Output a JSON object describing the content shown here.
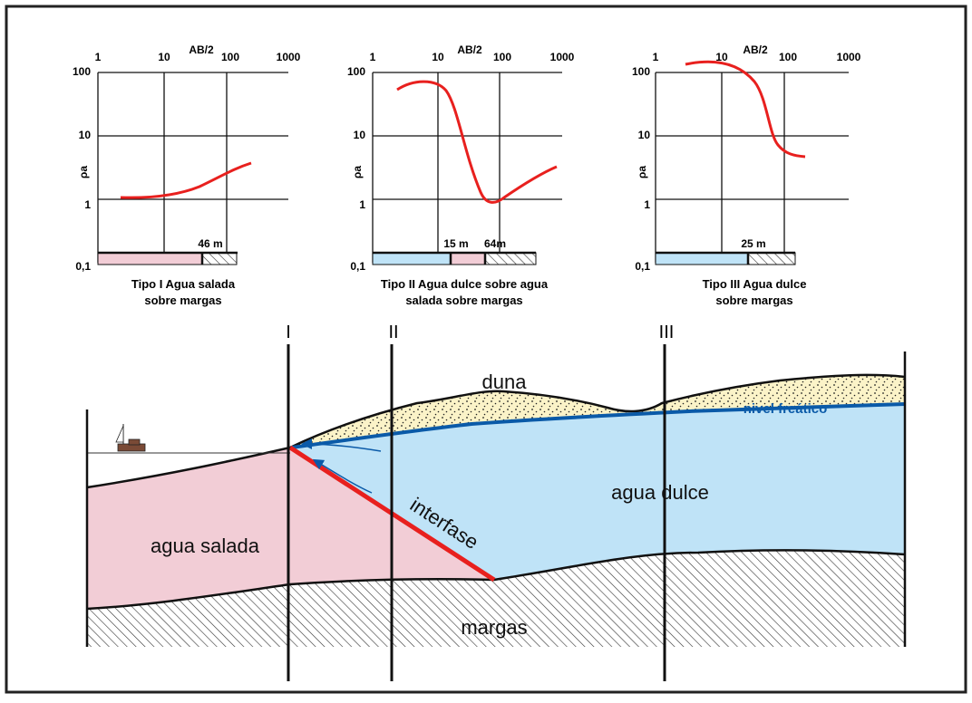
{
  "charts": [
    {
      "id": "tipo1",
      "x_ticks": [
        "1",
        "10",
        "100",
        "1000"
      ],
      "x_label": "AB/2",
      "y_ticks": [
        "100",
        "10",
        "1",
        "0,1"
      ],
      "y_label": "ρa",
      "log_scale": true,
      "bar_label": "46 m",
      "caption_lines": [
        "Tipo I  Agua salada",
        "sobre  margas"
      ]
    },
    {
      "id": "tipo2",
      "x_ticks": [
        "1",
        "10",
        "100",
        "1000"
      ],
      "x_label": "AB/2",
      "y_ticks": [
        "100",
        "10",
        "1",
        "0,1"
      ],
      "y_label": "ρa",
      "log_scale": true,
      "bar_labels": [
        "15 m",
        "64m"
      ],
      "caption_lines": [
        "Tipo II  Agua dulce sobre agua",
        "salada sobre  margas"
      ]
    },
    {
      "id": "tipo3",
      "x_ticks": [
        "1",
        "10",
        "100",
        "1000"
      ],
      "x_label": "AB/2",
      "y_ticks": [
        "100",
        "10",
        "1",
        "0,1"
      ],
      "y_label": "ρa",
      "log_scale": true,
      "bar_label": "25 m",
      "caption_lines": [
        "Tipo III  Agua dulce",
        "sobre  margas"
      ]
    }
  ],
  "section": {
    "markers": [
      "I",
      "II",
      "III"
    ],
    "labels": {
      "duna": "duna",
      "nivel": "nivel freático",
      "agua_dulce": "agua dulce",
      "agua_salada": "agua salada",
      "interfase": "interfase",
      "margas": "margas"
    }
  },
  "colors": {
    "curve": "#e8201e",
    "fresh_water": "#bfe3f7",
    "salt_water": "#f2cdd6",
    "dune_sand": "#fbf3c8",
    "water_table": "#0a5aa8",
    "interface": "#e8201e"
  }
}
